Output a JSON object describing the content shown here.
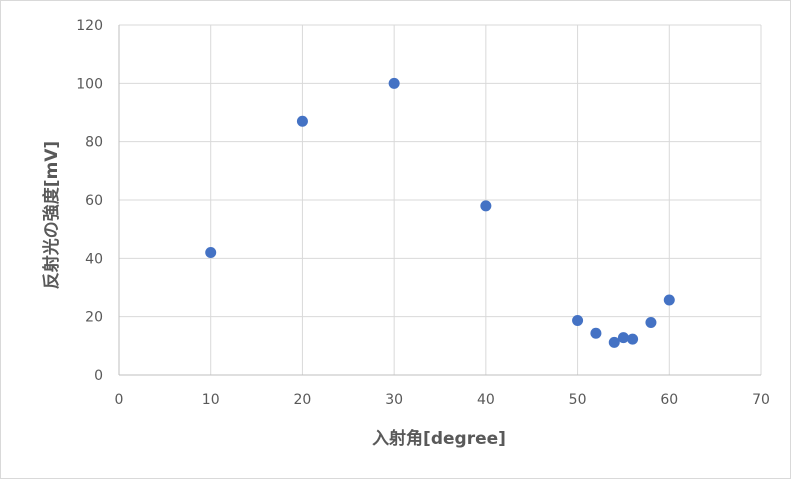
{
  "chart_data": {
    "type": "scatter",
    "title": "",
    "xlabel": "入射角[degree]",
    "ylabel": "反射光の強度[mV]",
    "xlim": [
      0,
      70
    ],
    "ylim": [
      0,
      120
    ],
    "x_ticks": [
      0,
      10,
      20,
      30,
      40,
      50,
      60,
      70
    ],
    "y_ticks": [
      0,
      20,
      40,
      60,
      80,
      100,
      120
    ],
    "grid": true,
    "legend": "none",
    "series": [
      {
        "color": "#4472c4",
        "points": [
          {
            "x": 10,
            "y": 42
          },
          {
            "x": 20,
            "y": 87
          },
          {
            "x": 30,
            "y": 100
          },
          {
            "x": 40,
            "y": 58
          },
          {
            "x": 50,
            "y": 18.7
          },
          {
            "x": 52,
            "y": 14.3
          },
          {
            "x": 54,
            "y": 11.2
          },
          {
            "x": 55,
            "y": 12.8
          },
          {
            "x": 56,
            "y": 12.3
          },
          {
            "x": 58,
            "y": 18
          },
          {
            "x": 60,
            "y": 25.7
          }
        ]
      }
    ]
  }
}
